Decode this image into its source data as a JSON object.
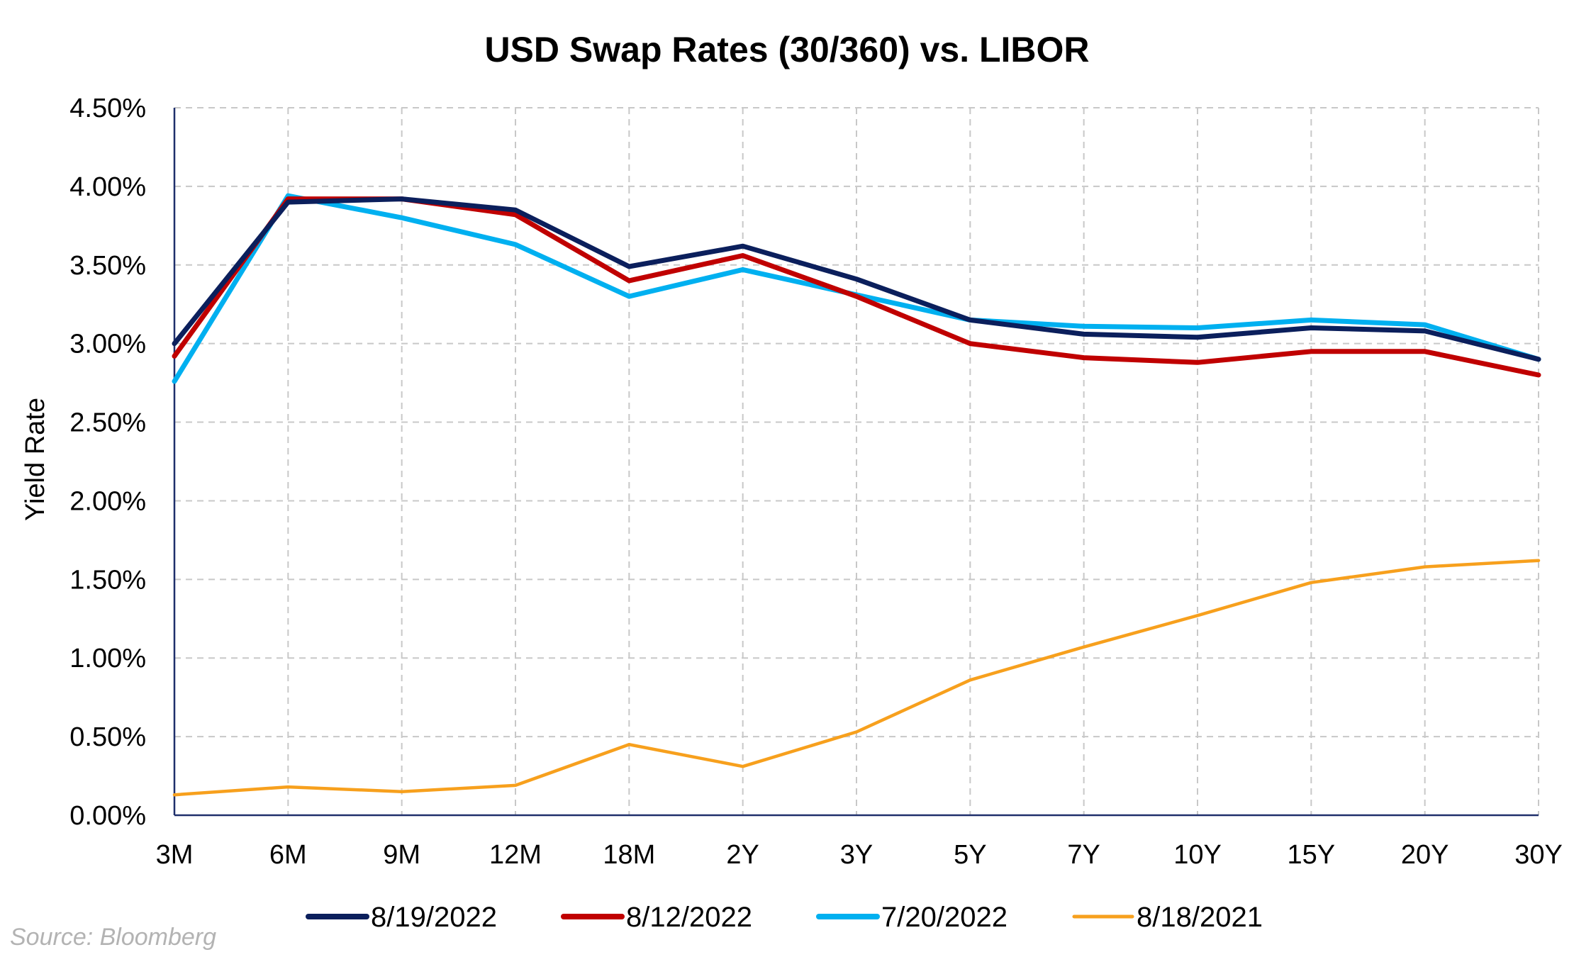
{
  "chart_data": {
    "type": "line",
    "title": "USD Swap Rates (30/360) vs. LIBOR",
    "xlabel": "",
    "ylabel": "Yield Rate",
    "categories": [
      "3M",
      "6M",
      "9M",
      "12M",
      "18M",
      "2Y",
      "3Y",
      "5Y",
      "7Y",
      "10Y",
      "15Y",
      "20Y",
      "30Y"
    ],
    "ylim": [
      0,
      4.5
    ],
    "yticks": [
      0,
      0.5,
      1.0,
      1.5,
      2.0,
      2.5,
      3.0,
      3.5,
      4.0,
      4.5
    ],
    "ytick_labels": [
      "0.00%",
      "0.50%",
      "1.00%",
      "1.50%",
      "2.00%",
      "2.50%",
      "3.00%",
      "3.50%",
      "4.00%",
      "4.50%"
    ],
    "grid": true,
    "legend_position": "bottom",
    "series": [
      {
        "name": "8/19/2022",
        "color": "#0b1f5c",
        "values": [
          3.0,
          3.9,
          3.92,
          3.85,
          3.49,
          3.62,
          3.41,
          3.15,
          3.06,
          3.04,
          3.1,
          3.08,
          2.9
        ]
      },
      {
        "name": "8/12/2022",
        "color": "#c00000",
        "values": [
          2.92,
          3.92,
          3.92,
          3.82,
          3.4,
          3.56,
          3.3,
          3.0,
          2.91,
          2.88,
          2.95,
          2.95,
          2.8
        ]
      },
      {
        "name": "7/20/2022",
        "color": "#00b0f0",
        "values": [
          2.76,
          3.94,
          3.8,
          3.63,
          3.3,
          3.47,
          3.31,
          3.15,
          3.11,
          3.1,
          3.15,
          3.12,
          2.9
        ]
      },
      {
        "name": "8/18/2021",
        "color": "#f7a01d",
        "values": [
          0.13,
          0.18,
          0.15,
          0.19,
          0.45,
          0.31,
          0.53,
          0.86,
          1.07,
          1.27,
          1.48,
          1.58,
          1.62
        ]
      }
    ]
  },
  "footer": {
    "source": "Source: Bloomberg"
  }
}
